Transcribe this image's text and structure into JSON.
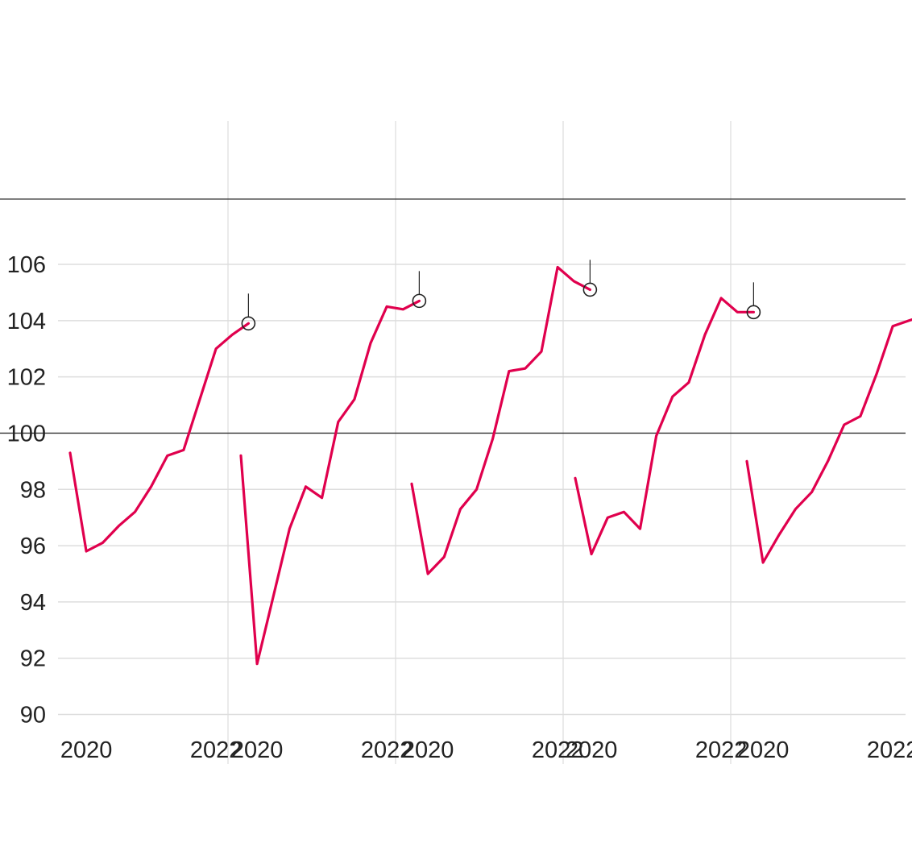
{
  "colors": {
    "series": "#e0004d",
    "grid": "#dddddd",
    "axis": "#333333",
    "marker": "#222222",
    "text": "#222222"
  },
  "chart_data": {
    "type": "line",
    "layout": "small-multiples",
    "panel_count": 5,
    "title": "",
    "xlabel": "",
    "ylabel": "",
    "ylim": [
      90,
      106.5
    ],
    "y_ticks": [
      90,
      92,
      94,
      96,
      98,
      100,
      102,
      104,
      106
    ],
    "y_tick_labels": [
      "90",
      "92",
      "94",
      "96",
      "98",
      "100",
      "102",
      "104",
      "106"
    ],
    "reference_line": 100,
    "grid": true,
    "x_range": [
      2019.75,
      2022.8
    ],
    "x_ticks": [
      2020,
      2022
    ],
    "x_tick_labels": [
      "2020",
      "2022"
    ],
    "x": [
      2019.75,
      2020.0,
      2020.25,
      2020.5,
      2020.75,
      2021.0,
      2021.25,
      2021.5,
      2021.75,
      2022.0,
      2022.25,
      2022.5,
      2022.75
    ],
    "last_point_marker": "hollow circle with tick line above",
    "series": [
      {
        "values": [
          99.3,
          95.8,
          96.1,
          96.7,
          97.2,
          98.1,
          99.2,
          99.4,
          101.2,
          103.0,
          103.5,
          103.9,
          null
        ]
      },
      {
        "values": [
          99.2,
          91.8,
          94.2,
          96.6,
          98.1,
          97.7,
          100.4,
          101.2,
          103.2,
          104.5,
          104.4,
          104.7,
          null
        ]
      },
      {
        "values": [
          98.2,
          95.0,
          95.6,
          97.3,
          98.0,
          99.8,
          102.2,
          102.3,
          102.9,
          105.9,
          105.4,
          105.1,
          null
        ]
      },
      {
        "values": [
          98.4,
          95.7,
          97.0,
          97.2,
          96.6,
          99.9,
          101.3,
          101.8,
          103.5,
          104.8,
          104.3,
          104.3,
          null
        ]
      },
      {
        "values": [
          99.0,
          95.4,
          96.4,
          97.3,
          97.9,
          99.0,
          100.3,
          100.6,
          102.1,
          103.8,
          104.0,
          104.2,
          104.3
        ]
      }
    ]
  }
}
